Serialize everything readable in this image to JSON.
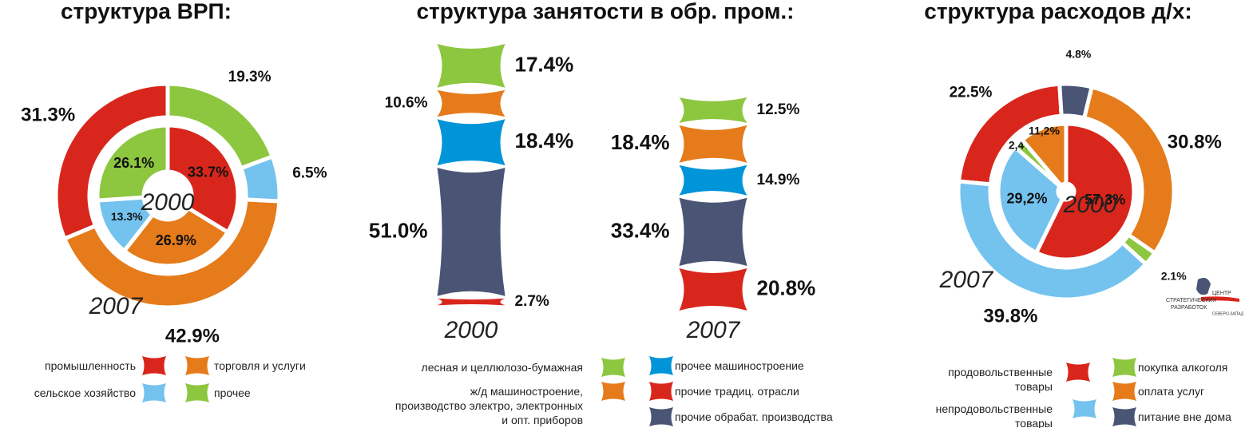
{
  "chart_data": [
    {
      "type": "donut",
      "title": "структура ВРП:",
      "categories": [
        "промышленность",
        "торговля и услуги",
        "сельское хозяйство",
        "прочее"
      ],
      "colors": [
        "#d9261c",
        "#e57b1a",
        "#74c2ee",
        "#8dc63f"
      ],
      "series": [
        {
          "name": "2007",
          "values": [
            31.3,
            42.9,
            6.5,
            19.3
          ],
          "value_labels": [
            "31.3%",
            "42.9%",
            "6.5%",
            "19.3%"
          ]
        },
        {
          "name": "2000",
          "values": [
            33.7,
            26.9,
            13.3,
            26.1
          ],
          "value_labels": [
            "33.7%",
            "26.9%",
            "13.3%",
            "26.1%"
          ]
        }
      ]
    },
    {
      "type": "bar",
      "stacked": true,
      "title": "структура занятости в обр. пром.:",
      "categories": [
        "2000",
        "2007"
      ],
      "series": [
        {
          "name": "лесная и целлюлозо-бумажная",
          "color": "#8dc63f",
          "values": [
            17.4,
            12.5
          ],
          "value_labels": [
            "17.4%",
            "12.5%"
          ]
        },
        {
          "name": "ж/д машиностроение,\nпроизводство электро, электронных\nи опт. приборов",
          "color": "#e57b1a",
          "values": [
            10.6,
            18.4
          ],
          "value_labels": [
            "10.6%",
            "18.4%"
          ]
        },
        {
          "name": "прочее машиностроение",
          "color": "#0094d9",
          "values": [
            18.4,
            14.9
          ],
          "value_labels": [
            "18.4%",
            "14.9%"
          ]
        },
        {
          "name": "прочие обрабат. производства",
          "color": "#4a5575",
          "values": [
            51.0,
            33.4
          ],
          "value_labels": [
            "51.0%",
            "33.4%"
          ]
        },
        {
          "name": "прочие традиц. отрасли",
          "color": "#d9261c",
          "values": [
            2.7,
            20.8
          ],
          "value_labels": [
            "2.7%",
            "20.8%"
          ]
        }
      ]
    },
    {
      "type": "donut",
      "title": "структура расходов д/х:",
      "categories": [
        "продовольственные\nтовары",
        "непродовольственные\nтовары",
        "покупка алкоголя",
        "оплата услуг",
        "питание вне дома"
      ],
      "colors": [
        "#d9261c",
        "#74c2ee",
        "#8dc63f",
        "#e57b1a",
        "#4a5575"
      ],
      "series": [
        {
          "name": "2007",
          "values": [
            22.5,
            39.8,
            2.1,
            30.8,
            4.8
          ],
          "value_labels": [
            "22.5%",
            "39.8%",
            "2.1%",
            "30.8%",
            "4.8%"
          ]
        },
        {
          "name": "2000",
          "values": [
            57.3,
            29.2,
            2.4,
            11.2,
            null
          ],
          "value_labels": [
            "57,3%",
            "29,2%",
            "2,4%",
            "11,2%",
            null
          ]
        }
      ]
    }
  ],
  "logo": {
    "lines": [
      "ЦЕНТР",
      "СТРАТЕГИЧЕСКИХ",
      "РАЗРАБОТОК",
      "СЕВЕРО-ЗАПАД"
    ]
  }
}
